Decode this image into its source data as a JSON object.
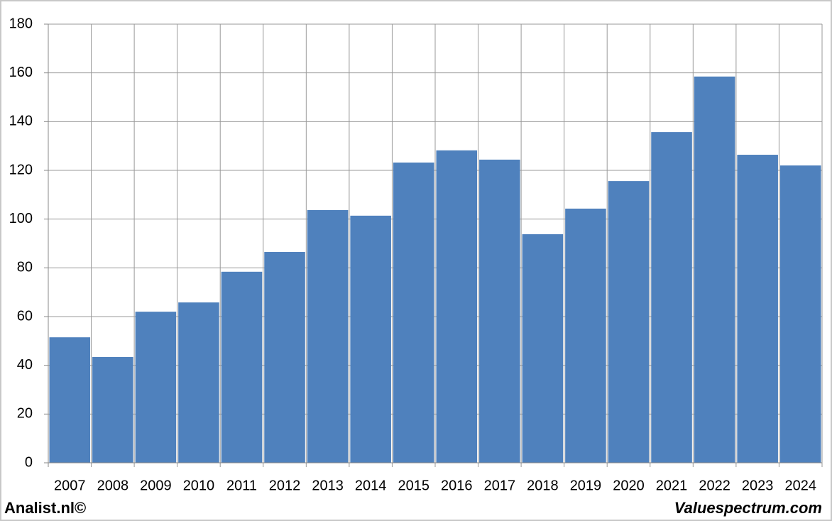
{
  "chart_data": {
    "type": "bar",
    "categories": [
      "2007",
      "2008",
      "2009",
      "2010",
      "2011",
      "2012",
      "2013",
      "2014",
      "2015",
      "2016",
      "2017",
      "2018",
      "2019",
      "2020",
      "2021",
      "2022",
      "2023",
      "2024"
    ],
    "values": [
      51.5,
      43.4,
      62,
      65.8,
      78.4,
      86.5,
      103.7,
      101.4,
      123.2,
      128.2,
      124.4,
      93.8,
      104.3,
      115.6,
      135.7,
      158.5,
      126.4,
      122
    ],
    "color": "#4f81bd",
    "ylim": [
      0,
      180
    ],
    "yticks": [
      0,
      20,
      40,
      60,
      80,
      100,
      120,
      140,
      160,
      180
    ],
    "grid": true
  },
  "footer": {
    "left": "Analist.nl©",
    "right": "Valuespectrum.com"
  }
}
